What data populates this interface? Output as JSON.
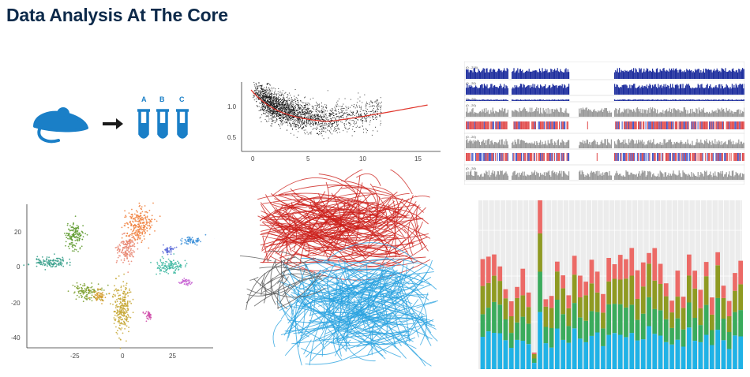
{
  "page": {
    "title": "Data Analysis At The Core"
  },
  "icons": {
    "mouse_icon": "mouse-icon",
    "arrow_icon": "arrow-right-icon",
    "tube_icon": "test-tube-icon",
    "tube_labels": [
      "A",
      "B",
      "C"
    ],
    "color": "#1a7fc7"
  },
  "scatter_trend": {
    "x_ticks": [
      "0",
      "5",
      "10",
      "15"
    ],
    "y_ticks": [
      "1.0",
      "0.5"
    ],
    "point_color": "#111111",
    "trend_color": "#e0342a"
  },
  "genome_tracks": {
    "track_labels": [
      "(0 - 218)",
      "(0 - 20)",
      "(0 - 20)",
      "(0 - 20)",
      "",
      "(0 - 20)",
      "",
      "(0 - 28)"
    ],
    "colors": {
      "coverage": "#1f2f9e",
      "gray": "#9a9a9a",
      "red": "#e04848",
      "blue": "#4257c8"
    }
  },
  "tsne": {
    "x_ticks": [
      "-25",
      "0",
      "25"
    ],
    "y_ticks": [
      "20",
      "0",
      "-20",
      "-40"
    ],
    "cluster_colors": [
      "#f07e3a",
      "#e8826e",
      "#5e9a2e",
      "#2f9b86",
      "#3bb7a0",
      "#c4a52f",
      "#7a9e2a",
      "#d49b2a",
      "#c55fd1",
      "#3a8ed8",
      "#5b6ad8",
      "#d04faa"
    ]
  },
  "network": {
    "red_color": "#cc1f1a",
    "blue_color": "#2aa3e0",
    "gray_color": "#555555"
  },
  "stacked_bars": {
    "series_colors": [
      "#1fb2e6",
      "#3aab5c",
      "#8f9a22",
      "#ec6a66"
    ]
  }
}
